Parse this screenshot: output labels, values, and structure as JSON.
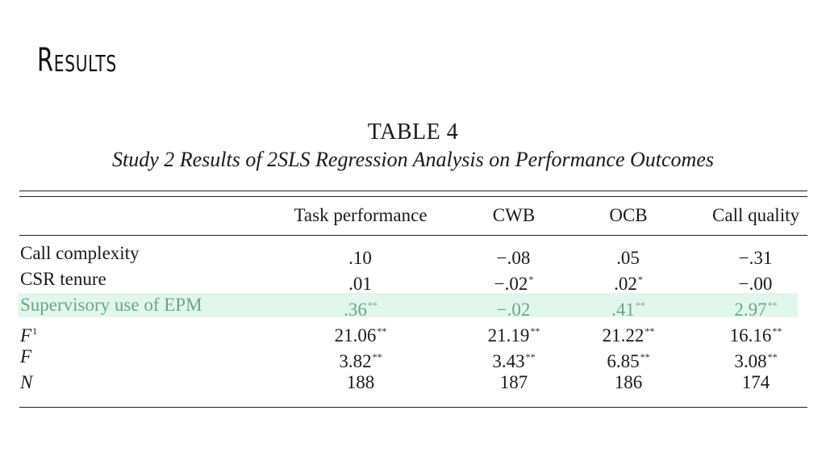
{
  "slide": {
    "title": "Results"
  },
  "table": {
    "label": "TABLE 4",
    "caption": "Study 2 Results of 2SLS Regression Analysis on Performance Outcomes",
    "columns": [
      "Task performance",
      "CWB",
      "OCB",
      "Call quality"
    ],
    "rows": [
      {
        "label": "Call complexity",
        "label_sup": "",
        "cells": [
          {
            "v": ".10",
            "sig": ""
          },
          {
            "v": "−.08",
            "sig": ""
          },
          {
            "v": ".05",
            "sig": ""
          },
          {
            "v": "−.31",
            "sig": ""
          }
        ]
      },
      {
        "label": "CSR tenure",
        "label_sup": "",
        "cells": [
          {
            "v": ".01",
            "sig": ""
          },
          {
            "v": "−.02",
            "sig": "*"
          },
          {
            "v": ".02",
            "sig": "*"
          },
          {
            "v": "−.00",
            "sig": ""
          }
        ]
      },
      {
        "label": "Supervisory use of EPM",
        "label_sup": "",
        "cells": [
          {
            "v": ".36",
            "sig": "**"
          },
          {
            "v": "−.02",
            "sig": ""
          },
          {
            "v": ".41",
            "sig": "**"
          },
          {
            "v": "2.97",
            "sig": "**"
          }
        ]
      },
      {
        "label": "F",
        "label_sup": "1",
        "cells": [
          {
            "v": "21.06",
            "sig": "**"
          },
          {
            "v": "21.19",
            "sig": "**"
          },
          {
            "v": "21.22",
            "sig": "**"
          },
          {
            "v": "16.16",
            "sig": "**"
          }
        ]
      },
      {
        "label": "F",
        "label_sup": "",
        "cells": [
          {
            "v": "3.82",
            "sig": "**"
          },
          {
            "v": "3.43",
            "sig": "**"
          },
          {
            "v": "6.85",
            "sig": "**"
          },
          {
            "v": "3.08",
            "sig": "**"
          }
        ]
      },
      {
        "label": "N",
        "label_sup": "",
        "cells": [
          {
            "v": "188",
            "sig": ""
          },
          {
            "v": "187",
            "sig": ""
          },
          {
            "v": "186",
            "sig": ""
          },
          {
            "v": "174",
            "sig": ""
          }
        ]
      }
    ],
    "highlight_color": "#e2f7ec",
    "highlight_text_color": "#6aa786"
  }
}
